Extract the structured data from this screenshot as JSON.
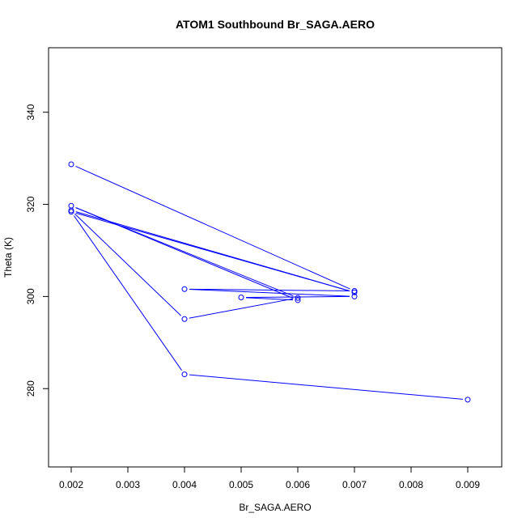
{
  "chart_data": {
    "type": "line",
    "title": "ATOM1 Southbound Br_SAGA.AERO",
    "xlabel": "Br_SAGA.AERO",
    "ylabel": "Theta (K)",
    "xlim": [
      0.0016,
      0.0096
    ],
    "ylim": [
      263,
      354
    ],
    "xticks": [
      0.002,
      0.003,
      0.004,
      0.005,
      0.006,
      0.007,
      0.008,
      0.009
    ],
    "xtick_labels": [
      "0.002",
      "0.003",
      "0.004",
      "0.005",
      "0.006",
      "0.007",
      "0.008",
      "0.009"
    ],
    "yticks": [
      280,
      300,
      320,
      340
    ],
    "ytick_labels": [
      "280",
      "300",
      "320",
      "340"
    ],
    "grid": false,
    "color": "#0000ff",
    "markers": "open-circle",
    "series": [
      {
        "x": [
          0.002,
          0.007,
          0.004,
          0.007,
          0.005,
          0.006,
          0.002,
          0.006,
          0.004,
          0.002,
          0.007,
          0.002,
          0.004,
          0.009
        ],
        "y": [
          328.7,
          301.2,
          301.6,
          300.0,
          299.8,
          299.2,
          319.7,
          299.7,
          295.1,
          318.7,
          300.9,
          318.4,
          283.1,
          277.6
        ]
      }
    ]
  }
}
